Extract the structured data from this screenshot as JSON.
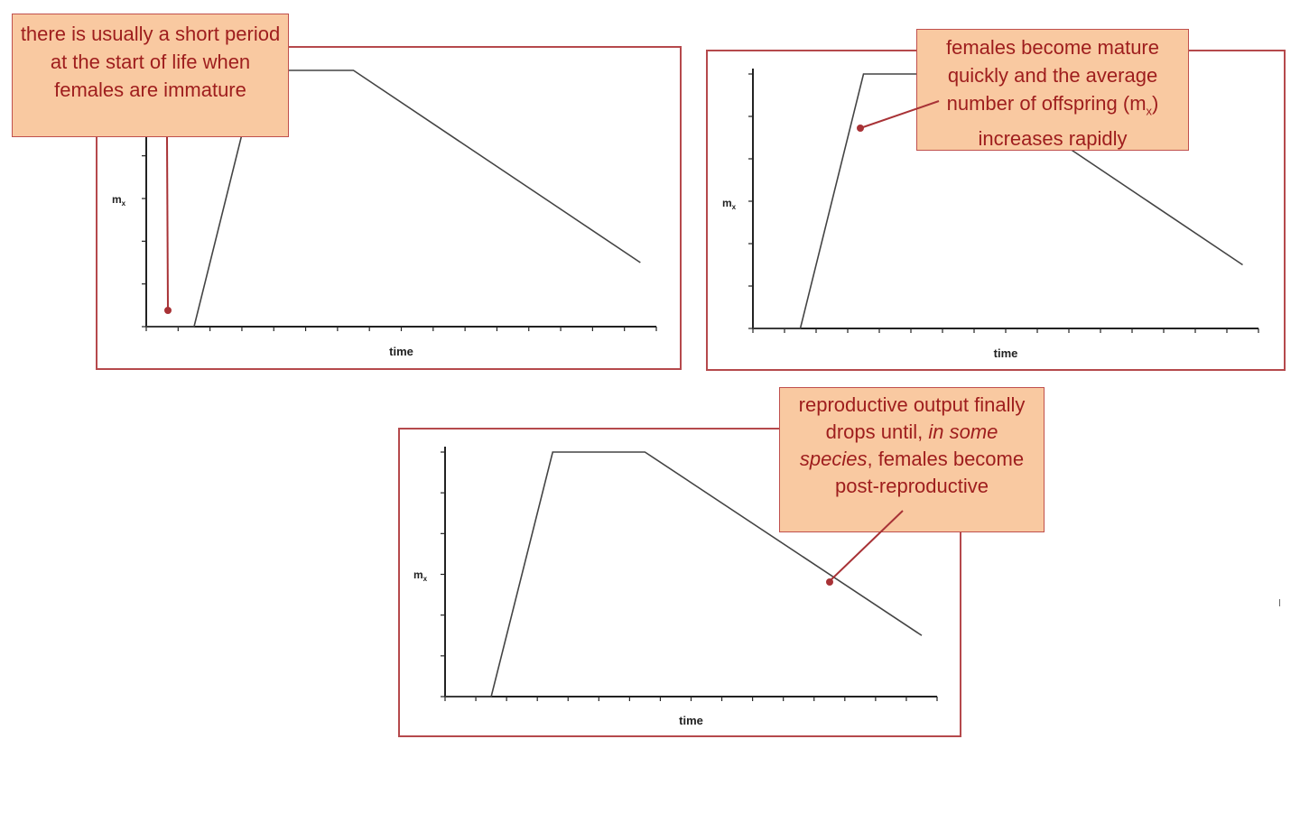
{
  "colors": {
    "frame": "#b5494c",
    "callout_fill": "#f9c9a1",
    "callout_border": "#c0504d",
    "callout_text": "#9e1d1d",
    "curve": "#444444",
    "axis": "#222222"
  },
  "callouts": {
    "immature": {
      "text": "there is usually a short period at the start of life when females are immature"
    },
    "mature": {
      "text_before": "females become mature quickly and the average number of offspring (m",
      "subscript": "x",
      "text_after": ") increases rapidly"
    },
    "decline": {
      "text_before": "reproductive output finally drops until,",
      "italic": "in some species",
      "text_after": ", females become post-reproductive"
    }
  },
  "chart_data": [
    {
      "type": "line",
      "xlabel": "time",
      "ylabel": "mx",
      "ylabel_main": "m",
      "ylabel_sub": "x",
      "xlim": [
        0,
        16
      ],
      "ylim": [
        0,
        6
      ],
      "x_ticks": 16,
      "y_ticks": 6,
      "grid": false,
      "x": [
        0,
        1.5,
        3.5,
        6.5,
        15.5
      ],
      "y": [
        0,
        0,
        6,
        6,
        1.5
      ]
    },
    {
      "type": "line",
      "xlabel": "time",
      "ylabel": "mx",
      "ylabel_main": "m",
      "ylabel_sub": "x",
      "xlim": [
        0,
        16
      ],
      "ylim": [
        0,
        6
      ],
      "x_ticks": 16,
      "y_ticks": 6,
      "grid": false,
      "x": [
        0,
        1.5,
        3.5,
        6.5,
        15.5
      ],
      "y": [
        0,
        0,
        6,
        6,
        1.5
      ]
    },
    {
      "type": "line",
      "xlabel": "time",
      "ylabel": "mx",
      "ylabel_main": "m",
      "ylabel_sub": "x",
      "xlim": [
        0,
        16
      ],
      "ylim": [
        0,
        6
      ],
      "x_ticks": 16,
      "y_ticks": 6,
      "grid": false,
      "x": [
        0,
        1.5,
        3.5,
        6.5,
        15.5
      ],
      "y": [
        0,
        0,
        6,
        6,
        1.5
      ]
    }
  ]
}
